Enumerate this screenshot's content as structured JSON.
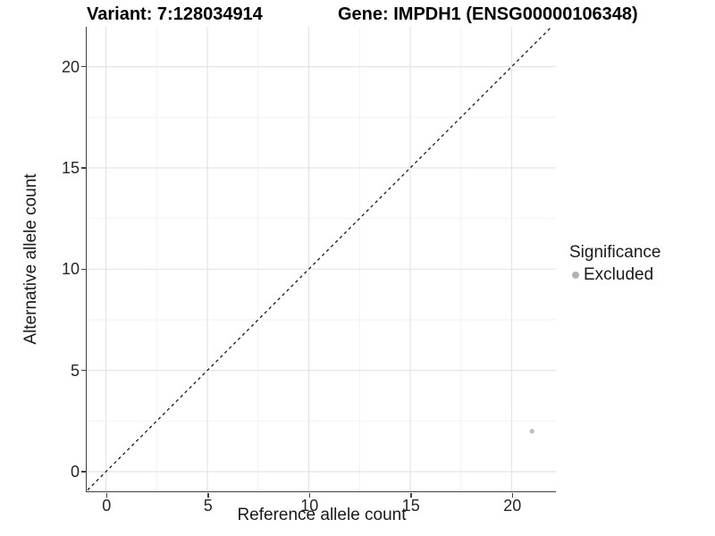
{
  "chart_data": {
    "type": "scatter",
    "titles": {
      "left": "Variant: 7:128034914",
      "right": "Gene: IMPDH1 (ENSG00000106348)"
    },
    "xlabel": "Reference allele count",
    "ylabel": "Alternative allele count",
    "x_ticks": [
      0,
      5,
      10,
      15,
      20
    ],
    "y_ticks": [
      0,
      5,
      10,
      15,
      20
    ],
    "xlim": [
      -1,
      22.2
    ],
    "ylim": [
      -1,
      22
    ],
    "grid": "major+minor",
    "reference_line": {
      "type": "identity",
      "slope": 1,
      "intercept": 0,
      "style": "dashed"
    },
    "series": [
      {
        "name": "Excluded",
        "color": "#bdbdbd",
        "points": [
          {
            "x": 21,
            "y": 2
          }
        ]
      }
    ],
    "legend": {
      "title": "Significance",
      "position": "right",
      "items": [
        {
          "label": "Excluded",
          "color": "#b3b3b3"
        }
      ]
    }
  },
  "colors": {
    "background": "#ffffff",
    "axis": "#404040",
    "grid_major": "#e4e4e4",
    "grid_minor": "#f2f2f2",
    "tick_text": "#262626",
    "dashed_line": "#1a1a1a"
  }
}
